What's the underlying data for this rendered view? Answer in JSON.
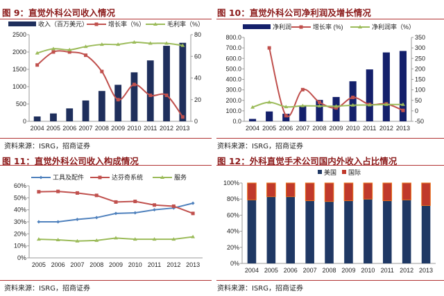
{
  "source": "资料来源：ISRG，招商证券",
  "chart_data": [
    {
      "type": "bar+line",
      "title": "图 9：直觉外科公司收入情况",
      "categories": [
        "2004",
        "2005",
        "2006",
        "2007",
        "2008",
        "2009",
        "2010",
        "2011",
        "2012",
        "2013"
      ],
      "ylim": [
        0,
        2500
      ],
      "yticks": [
        0,
        500,
        1000,
        1500,
        2000,
        2500
      ],
      "y2lim": [
        0,
        80
      ],
      "y2ticks": [
        0,
        20,
        40,
        60,
        80
      ],
      "series": [
        {
          "name": "收入（百万美元）",
          "kind": "bar",
          "axis": "left",
          "color": "#1f2f5c",
          "values": [
            140,
            227,
            373,
            601,
            875,
            1053,
            1413,
            1757,
            2179,
            2265
          ]
        },
        {
          "name": "增长率（%）",
          "kind": "line",
          "marker": "square",
          "axis": "right",
          "color": "#c0504d",
          "values": [
            52,
            64,
            64,
            61,
            46,
            20,
            34,
            24,
            24,
            4
          ]
        },
        {
          "name": "毛利率（%）",
          "kind": "line",
          "marker": "triangle",
          "axis": "right",
          "color": "#9bbb59",
          "values": [
            63,
            67,
            66,
            69,
            71,
            71,
            73,
            72,
            72,
            70
          ]
        }
      ]
    },
    {
      "type": "bar+line",
      "title": "图 10：直觉外科公司净利润及增长情况",
      "categories": [
        "2004",
        "2005",
        "2006",
        "2007",
        "2008",
        "2009",
        "2010",
        "2011",
        "2012",
        "2013"
      ],
      "ylim": [
        0,
        800
      ],
      "yticks": [
        "0.0",
        "100.0",
        "200.0",
        "300.0",
        "400.0",
        "500.0",
        "600.0",
        "700.0",
        "800.0"
      ],
      "y2lim": [
        -50,
        350
      ],
      "y2ticks": [
        -50,
        0,
        50,
        100,
        150,
        200,
        250,
        300,
        350
      ],
      "series": [
        {
          "name": "净利润",
          "kind": "bar",
          "axis": "left",
          "color": "#14206b",
          "values": [
            23,
            94,
            72,
            145,
            204,
            232,
            382,
            495,
            657,
            671
          ]
        },
        {
          "name": "增长率 (%)",
          "kind": "line",
          "marker": "square",
          "axis": "right",
          "color": "#c0504d",
          "values": [
            null,
            300,
            -23,
            101,
            41,
            14,
            64,
            30,
            33,
            2
          ]
        },
        {
          "name": "净利润率（%）",
          "kind": "line",
          "marker": "triangle",
          "axis": "right",
          "color": "#9bbb59",
          "values": [
            17,
            41,
            19,
            24,
            23,
            22,
            27,
            28,
            30,
            30
          ]
        }
      ]
    },
    {
      "type": "line",
      "title": "图 11：直觉外科公司收入构成情况",
      "categories": [
        "2005",
        "2006",
        "2007",
        "2008",
        "2009",
        "2010",
        "2011",
        "2012",
        "2013"
      ],
      "ylim": [
        0,
        60
      ],
      "yticks": [
        "0%",
        "10%",
        "20%",
        "30%",
        "40%",
        "50%",
        "60%"
      ],
      "series": [
        {
          "name": "工具及配件",
          "kind": "line",
          "marker": "diamond",
          "color": "#4f81bd",
          "values": [
            30,
            30,
            32,
            33.5,
            37,
            37.5,
            40,
            41.5,
            45.5
          ]
        },
        {
          "name": "达芬奇系统",
          "kind": "line",
          "marker": "square",
          "color": "#c0504d",
          "values": [
            55,
            55.3,
            54,
            52,
            46.5,
            47,
            44,
            43,
            37
          ]
        },
        {
          "name": "服务",
          "kind": "line",
          "marker": "triangle",
          "color": "#9bbb59",
          "values": [
            15.5,
            15,
            14,
            14.5,
            16.5,
            15.5,
            15.5,
            15.5,
            17.5
          ]
        }
      ]
    },
    {
      "type": "stacked-bar",
      "title": "图 12：外科直觉手术公司国内外收入占比情况",
      "categories": [
        "2004",
        "2005",
        "2006",
        "2007",
        "2008",
        "2009",
        "2010",
        "2011",
        "2012",
        "2013"
      ],
      "ylim": [
        0,
        100
      ],
      "yticks": [
        "0%",
        "20%",
        "40%",
        "60%",
        "80%",
        "100%"
      ],
      "series": [
        {
          "name": "美国",
          "color": "#1f3864",
          "values": [
            79,
            83,
            83,
            78,
            77,
            78,
            80,
            78,
            79,
            72
          ]
        },
        {
          "name": "国际",
          "color": "#c0392b",
          "values": [
            21,
            17,
            17,
            22,
            23,
            22,
            20,
            22,
            21,
            28
          ]
        }
      ]
    }
  ]
}
